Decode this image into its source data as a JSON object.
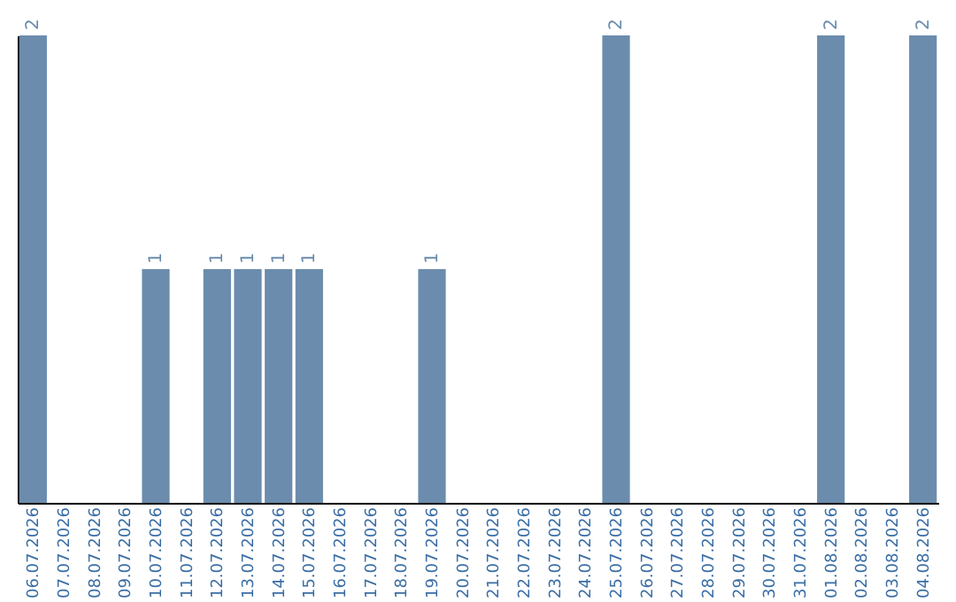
{
  "chart_data": {
    "type": "bar",
    "categories": [
      "06.07.2026",
      "07.07.2026",
      "08.07.2026",
      "09.07.2026",
      "10.07.2026",
      "11.07.2026",
      "12.07.2026",
      "13.07.2026",
      "14.07.2026",
      "15.07.2026",
      "16.07.2026",
      "17.07.2026",
      "18.07.2026",
      "19.07.2026",
      "20.07.2026",
      "21.07.2026",
      "22.07.2026",
      "23.07.2026",
      "24.07.2026",
      "25.07.2026",
      "26.07.2026",
      "27.07.2026",
      "28.07.2026",
      "29.07.2026",
      "30.07.2026",
      "31.07.2026",
      "01.08.2026",
      "02.08.2026",
      "03.08.2026",
      "04.08.2026"
    ],
    "values": [
      2,
      0,
      0,
      0,
      1,
      0,
      1,
      1,
      1,
      1,
      0,
      0,
      0,
      1,
      0,
      0,
      0,
      0,
      0,
      2,
      0,
      0,
      0,
      0,
      0,
      0,
      2,
      0,
      0,
      2
    ],
    "value_labels": [
      "2",
      null,
      null,
      null,
      "1",
      null,
      "1",
      "1",
      "1",
      "1",
      null,
      null,
      null,
      "1",
      null,
      null,
      null,
      null,
      null,
      "2",
      null,
      null,
      null,
      null,
      null,
      null,
      "2",
      null,
      null,
      "2"
    ],
    "color": "#6b8cad",
    "ylim": [
      0,
      2
    ],
    "tick_labels": "x",
    "grid": false
  }
}
